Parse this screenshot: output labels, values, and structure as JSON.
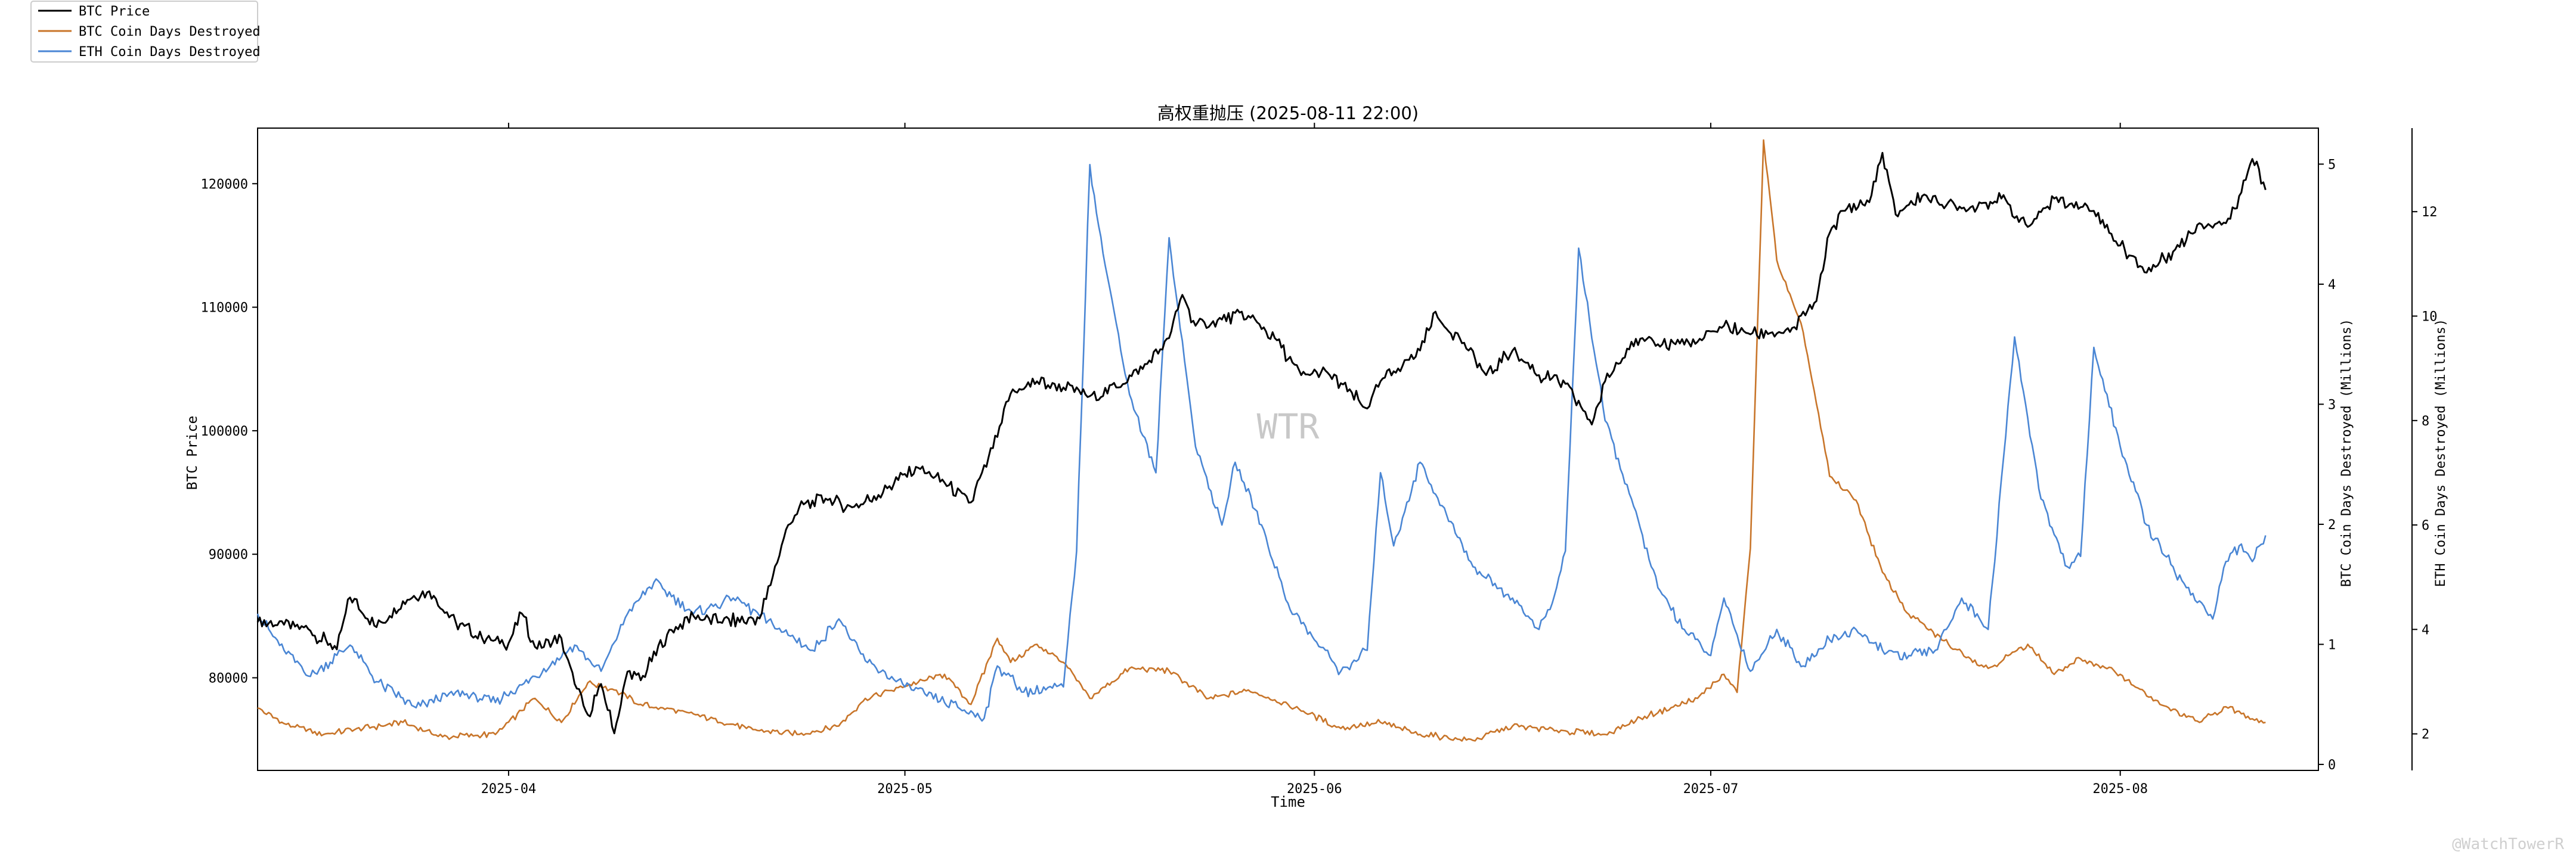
{
  "chart_data": {
    "type": "line",
    "title": "高权重抛压 (2025-08-11 22:00)",
    "xlabel": "Time",
    "x_ticks": [
      "2025-04",
      "2025-05",
      "2025-06",
      "2025-07",
      "2025-08"
    ],
    "x_range": [
      "2025-03-13",
      "2025-08-16"
    ],
    "grid": false,
    "legend_position": "top-left outside",
    "watermark": "WTR",
    "footer_watermark": "@WatchTowerR",
    "axes": [
      {
        "side": "left",
        "label": "BTC Price",
        "ylim": [
          72500,
          124500
        ],
        "ticks": [
          80000,
          90000,
          100000,
          110000,
          120000
        ],
        "tick_labels": [
          "80000",
          "90000",
          "100000",
          "110000",
          "120000"
        ]
      },
      {
        "side": "right",
        "label": "BTC Coin Days Destroyed (Millions)",
        "ylim": [
          -0.05,
          5.3
        ],
        "ticks": [
          0,
          1,
          2,
          3,
          4,
          5
        ],
        "tick_labels": [
          "0",
          "1",
          "2",
          "3",
          "4",
          "5"
        ]
      },
      {
        "side": "right-outer",
        "label": "ETH Coin Days Destroyed (Millions)",
        "ylim": [
          1.3,
          13.6
        ],
        "ticks": [
          2,
          4,
          6,
          8,
          10,
          12
        ],
        "tick_labels": [
          "2",
          "4",
          "6",
          "8",
          "10",
          "12"
        ]
      }
    ],
    "series": [
      {
        "name": "BTC Price",
        "axis": "left",
        "color": "#000000",
        "points": [
          [
            "2025-03-13",
            84500
          ],
          [
            "2025-03-15",
            84300
          ],
          [
            "2025-03-17",
            83800
          ],
          [
            "2025-03-19",
            82300
          ],
          [
            "2025-03-20",
            86500
          ],
          [
            "2025-03-22",
            84100
          ],
          [
            "2025-03-24",
            86200
          ],
          [
            "2025-03-26",
            87000
          ],
          [
            "2025-03-28",
            84500
          ],
          [
            "2025-03-30",
            83200
          ],
          [
            "2025-04-01",
            82800
          ],
          [
            "2025-04-02",
            85200
          ],
          [
            "2025-04-03",
            82500
          ],
          [
            "2025-04-05",
            83200
          ],
          [
            "2025-04-06",
            79500
          ],
          [
            "2025-04-07",
            77000
          ],
          [
            "2025-04-08",
            79500
          ],
          [
            "2025-04-09",
            75500
          ],
          [
            "2025-04-10",
            80500
          ],
          [
            "2025-04-11",
            79800
          ],
          [
            "2025-04-13",
            83500
          ],
          [
            "2025-04-15",
            85000
          ],
          [
            "2025-04-17",
            84500
          ],
          [
            "2025-04-20",
            84800
          ],
          [
            "2025-04-21",
            88200
          ],
          [
            "2025-04-22",
            92000
          ],
          [
            "2025-04-23",
            93800
          ],
          [
            "2025-04-25",
            94500
          ],
          [
            "2025-04-27",
            93800
          ],
          [
            "2025-04-29",
            94800
          ],
          [
            "2025-05-01",
            96500
          ],
          [
            "2025-05-02",
            97000
          ],
          [
            "2025-05-04",
            95800
          ],
          [
            "2025-05-06",
            94200
          ],
          [
            "2025-05-08",
            99500
          ],
          [
            "2025-05-09",
            103000
          ],
          [
            "2025-05-11",
            104000
          ],
          [
            "2025-05-13",
            103500
          ],
          [
            "2025-05-15",
            102800
          ],
          [
            "2025-05-17",
            103500
          ],
          [
            "2025-05-19",
            105000
          ],
          [
            "2025-05-21",
            107500
          ],
          [
            "2025-05-22",
            111000
          ],
          [
            "2025-05-23",
            108500
          ],
          [
            "2025-05-25",
            109000
          ],
          [
            "2025-05-27",
            109300
          ],
          [
            "2025-05-29",
            107500
          ],
          [
            "2025-05-31",
            104500
          ],
          [
            "2025-06-02",
            104700
          ],
          [
            "2025-06-05",
            101800
          ],
          [
            "2025-06-06",
            104000
          ],
          [
            "2025-06-09",
            106500
          ],
          [
            "2025-06-10",
            109500
          ],
          [
            "2025-06-12",
            107500
          ],
          [
            "2025-06-14",
            104500
          ],
          [
            "2025-06-16",
            106500
          ],
          [
            "2025-06-18",
            104500
          ],
          [
            "2025-06-20",
            103800
          ],
          [
            "2025-06-22",
            100500
          ],
          [
            "2025-06-23",
            104000
          ],
          [
            "2025-06-25",
            107200
          ],
          [
            "2025-06-27",
            107000
          ],
          [
            "2025-06-30",
            107200
          ],
          [
            "2025-07-02",
            108500
          ],
          [
            "2025-07-04",
            107800
          ],
          [
            "2025-07-07",
            108000
          ],
          [
            "2025-07-09",
            110500
          ],
          [
            "2025-07-10",
            116000
          ],
          [
            "2025-07-11",
            117800
          ],
          [
            "2025-07-13",
            118500
          ],
          [
            "2025-07-14",
            122500
          ],
          [
            "2025-07-15",
            117500
          ],
          [
            "2025-07-17",
            119000
          ],
          [
            "2025-07-20",
            118000
          ],
          [
            "2025-07-23",
            118800
          ],
          [
            "2025-07-25",
            116500
          ],
          [
            "2025-07-27",
            118800
          ],
          [
            "2025-07-30",
            117800
          ],
          [
            "2025-08-01",
            115000
          ],
          [
            "2025-08-03",
            112800
          ],
          [
            "2025-08-05",
            114500
          ],
          [
            "2025-08-07",
            116800
          ],
          [
            "2025-08-09",
            116800
          ],
          [
            "2025-08-10",
            119000
          ],
          [
            "2025-08-11",
            122000
          ],
          [
            "2025-08-12",
            119500
          ]
        ]
      },
      {
        "name": "BTC Coin Days Destroyed",
        "axis": "right",
        "color": "#c8752a",
        "points": [
          [
            "2025-03-13",
            0.47
          ],
          [
            "2025-03-15",
            0.34
          ],
          [
            "2025-03-18",
            0.25
          ],
          [
            "2025-03-21",
            0.3
          ],
          [
            "2025-03-24",
            0.35
          ],
          [
            "2025-03-27",
            0.23
          ],
          [
            "2025-03-31",
            0.25
          ],
          [
            "2025-04-03",
            0.55
          ],
          [
            "2025-04-05",
            0.35
          ],
          [
            "2025-04-07",
            0.68
          ],
          [
            "2025-04-09",
            0.62
          ],
          [
            "2025-04-11",
            0.5
          ],
          [
            "2025-04-15",
            0.42
          ],
          [
            "2025-04-19",
            0.3
          ],
          [
            "2025-04-23",
            0.25
          ],
          [
            "2025-04-26",
            0.32
          ],
          [
            "2025-04-28",
            0.55
          ],
          [
            "2025-05-01",
            0.65
          ],
          [
            "2025-05-04",
            0.75
          ],
          [
            "2025-05-06",
            0.5
          ],
          [
            "2025-05-08",
            1.05
          ],
          [
            "2025-05-09",
            0.85
          ],
          [
            "2025-05-11",
            1.0
          ],
          [
            "2025-05-13",
            0.85
          ],
          [
            "2025-05-15",
            0.55
          ],
          [
            "2025-05-18",
            0.8
          ],
          [
            "2025-05-21",
            0.78
          ],
          [
            "2025-05-24",
            0.55
          ],
          [
            "2025-05-27",
            0.62
          ],
          [
            "2025-05-30",
            0.5
          ],
          [
            "2025-06-03",
            0.3
          ],
          [
            "2025-06-06",
            0.35
          ],
          [
            "2025-06-09",
            0.25
          ],
          [
            "2025-06-13",
            0.2
          ],
          [
            "2025-06-16",
            0.32
          ],
          [
            "2025-06-20",
            0.28
          ],
          [
            "2025-06-23",
            0.25
          ],
          [
            "2025-06-26",
            0.4
          ],
          [
            "2025-06-30",
            0.55
          ],
          [
            "2025-07-02",
            0.75
          ],
          [
            "2025-07-03",
            0.6
          ],
          [
            "2025-07-04",
            1.8
          ],
          [
            "2025-07-05",
            5.2
          ],
          [
            "2025-07-06",
            4.2
          ],
          [
            "2025-07-08",
            3.6
          ],
          [
            "2025-07-10",
            2.4
          ],
          [
            "2025-07-12",
            2.2
          ],
          [
            "2025-07-14",
            1.6
          ],
          [
            "2025-07-16",
            1.25
          ],
          [
            "2025-07-19",
            1.0
          ],
          [
            "2025-07-22",
            0.8
          ],
          [
            "2025-07-25",
            1.0
          ],
          [
            "2025-07-27",
            0.75
          ],
          [
            "2025-07-29",
            0.88
          ],
          [
            "2025-08-01",
            0.75
          ],
          [
            "2025-08-04",
            0.5
          ],
          [
            "2025-08-07",
            0.35
          ],
          [
            "2025-08-09",
            0.48
          ],
          [
            "2025-08-11",
            0.38
          ],
          [
            "2025-08-12",
            0.35
          ]
        ]
      },
      {
        "name": "ETH Coin Days Destroyed",
        "axis": "right-outer",
        "color": "#4a86d4",
        "points": [
          [
            "2025-03-13",
            4.3
          ],
          [
            "2025-03-15",
            3.6
          ],
          [
            "2025-03-17",
            3.1
          ],
          [
            "2025-03-20",
            3.7
          ],
          [
            "2025-03-22",
            3.0
          ],
          [
            "2025-03-25",
            2.5
          ],
          [
            "2025-03-28",
            2.8
          ],
          [
            "2025-03-31",
            2.6
          ],
          [
            "2025-04-03",
            3.1
          ],
          [
            "2025-04-06",
            3.7
          ],
          [
            "2025-04-08",
            3.2
          ],
          [
            "2025-04-10",
            4.3
          ],
          [
            "2025-04-12",
            4.9
          ],
          [
            "2025-04-15",
            4.3
          ],
          [
            "2025-04-18",
            4.6
          ],
          [
            "2025-04-21",
            4.1
          ],
          [
            "2025-04-24",
            3.6
          ],
          [
            "2025-04-26",
            4.2
          ],
          [
            "2025-04-28",
            3.4
          ],
          [
            "2025-05-01",
            2.9
          ],
          [
            "2025-05-04",
            2.6
          ],
          [
            "2025-05-07",
            2.3
          ],
          [
            "2025-05-08",
            3.3
          ],
          [
            "2025-05-10",
            2.8
          ],
          [
            "2025-05-13",
            2.9
          ],
          [
            "2025-05-14",
            5.5
          ],
          [
            "2025-05-15",
            12.9
          ],
          [
            "2025-05-16",
            11.2
          ],
          [
            "2025-05-18",
            8.5
          ],
          [
            "2025-05-20",
            7.0
          ],
          [
            "2025-05-21",
            11.5
          ],
          [
            "2025-05-23",
            7.5
          ],
          [
            "2025-05-25",
            6.0
          ],
          [
            "2025-05-26",
            7.2
          ],
          [
            "2025-05-28",
            6.0
          ],
          [
            "2025-05-30",
            4.5
          ],
          [
            "2025-06-01",
            3.8
          ],
          [
            "2025-06-03",
            3.2
          ],
          [
            "2025-06-05",
            3.6
          ],
          [
            "2025-06-06",
            7.0
          ],
          [
            "2025-06-07",
            5.6
          ],
          [
            "2025-06-09",
            7.2
          ],
          [
            "2025-06-11",
            6.2
          ],
          [
            "2025-06-13",
            5.2
          ],
          [
            "2025-06-16",
            4.6
          ],
          [
            "2025-06-18",
            4.0
          ],
          [
            "2025-06-19",
            4.5
          ],
          [
            "2025-06-20",
            5.5
          ],
          [
            "2025-06-21",
            11.3
          ],
          [
            "2025-06-23",
            8.0
          ],
          [
            "2025-06-25",
            6.5
          ],
          [
            "2025-06-27",
            4.8
          ],
          [
            "2025-06-29",
            4.0
          ],
          [
            "2025-07-01",
            3.5
          ],
          [
            "2025-07-02",
            4.6
          ],
          [
            "2025-07-04",
            3.2
          ],
          [
            "2025-07-06",
            4.0
          ],
          [
            "2025-07-08",
            3.3
          ],
          [
            "2025-07-10",
            3.8
          ],
          [
            "2025-07-12",
            4.0
          ],
          [
            "2025-07-14",
            3.6
          ],
          [
            "2025-07-16",
            3.5
          ],
          [
            "2025-07-18",
            3.6
          ],
          [
            "2025-07-20",
            4.6
          ],
          [
            "2025-07-22",
            4.0
          ],
          [
            "2025-07-24",
            9.6
          ],
          [
            "2025-07-26",
            6.5
          ],
          [
            "2025-07-28",
            5.2
          ],
          [
            "2025-07-29",
            5.4
          ],
          [
            "2025-07-30",
            9.4
          ],
          [
            "2025-08-01",
            7.5
          ],
          [
            "2025-08-03",
            6.0
          ],
          [
            "2025-08-05",
            5.2
          ],
          [
            "2025-08-06",
            4.8
          ],
          [
            "2025-08-08",
            4.2
          ],
          [
            "2025-08-09",
            5.3
          ],
          [
            "2025-08-10",
            5.6
          ],
          [
            "2025-08-11",
            5.3
          ],
          [
            "2025-08-12",
            5.8
          ]
        ]
      }
    ]
  }
}
